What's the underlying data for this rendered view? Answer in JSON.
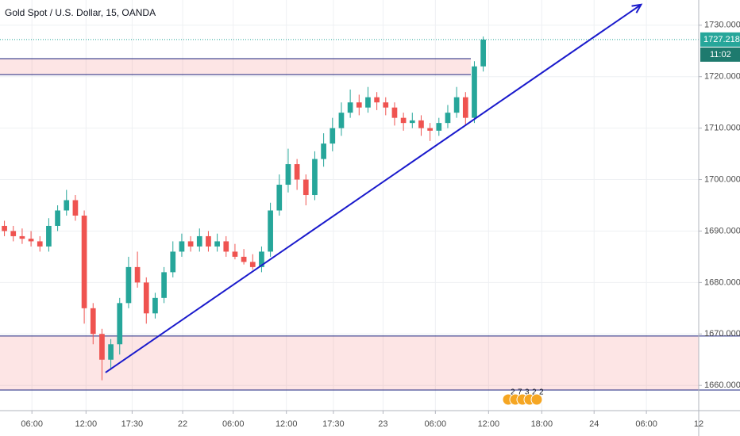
{
  "chart_data": {
    "type": "candlestick",
    "title": "Gold Spot / U.S. Dollar, 15, OANDA",
    "x": [
      0.5,
      1.5,
      2.5,
      3.5,
      4.5,
      5.5,
      6.5,
      7.5,
      8.5,
      9.5,
      10.5,
      11.5,
      12.5,
      13.5,
      14.5,
      15.5,
      16.5,
      17.5,
      18.5,
      19.5,
      20.5,
      21.5,
      22.5,
      23.5,
      24.5,
      25.5,
      26.5,
      27.5,
      28.5,
      29.5,
      30.5,
      31.5,
      32.5,
      33.5,
      34.5,
      35.5,
      36.5,
      37.5,
      38.5,
      39.5,
      40.5,
      41.5,
      42.5,
      43.5,
      44.5,
      45.5,
      46.5,
      47.5,
      48.5,
      49.5,
      50.5,
      51.5,
      52.5,
      53.5,
      54.5
    ],
    "open": [
      1691,
      1690,
      1689,
      1688.5,
      1688,
      1687,
      1691,
      1694,
      1696,
      1693,
      1675,
      1670,
      1665,
      1668,
      1676,
      1683,
      1680,
      1674,
      1677,
      1682,
      1686,
      1688,
      1687,
      1689,
      1687,
      1688,
      1686,
      1685,
      1684,
      1683,
      1686,
      1694,
      1699,
      1703,
      1700,
      1697,
      1704,
      1707,
      1710,
      1713,
      1715,
      1714,
      1716,
      1715,
      1714,
      1712,
      1711,
      1711.5,
      1710,
      1709.5,
      1711,
      1713,
      1716,
      1712,
      1722
    ],
    "high": [
      1692,
      1691,
      1690.5,
      1690,
      1689,
      1692.5,
      1695,
      1698,
      1697,
      1694,
      1676,
      1671,
      1669,
      1677,
      1685,
      1686,
      1681,
      1678,
      1683,
      1688,
      1689.5,
      1689,
      1690.5,
      1690,
      1689.5,
      1689,
      1687.5,
      1686.5,
      1685.5,
      1687,
      1695.5,
      1701,
      1706,
      1704,
      1701,
      1705.5,
      1709,
      1712,
      1715,
      1717.5,
      1716.5,
      1718,
      1717,
      1716,
      1715,
      1713,
      1713,
      1712.5,
      1711,
      1712,
      1714.5,
      1718,
      1717,
      1723,
      1727.8
    ],
    "low": [
      1689,
      1688,
      1687.5,
      1687,
      1686,
      1686,
      1690,
      1693,
      1692,
      1672,
      1668,
      1661,
      1663,
      1666,
      1675,
      1679,
      1672,
      1673,
      1676,
      1681,
      1685,
      1686,
      1686,
      1686,
      1686,
      1685,
      1684.5,
      1683.5,
      1682.5,
      1682,
      1685,
      1693,
      1697.5,
      1698,
      1695,
      1696,
      1702.5,
      1705.5,
      1708.5,
      1712,
      1712.5,
      1713,
      1713.5,
      1712.5,
      1710.5,
      1709.5,
      1710,
      1708.5,
      1707.5,
      1708.5,
      1710,
      1712,
      1710.5,
      1711,
      1721
    ],
    "close": [
      1690,
      1689,
      1688.5,
      1688,
      1687,
      1691,
      1694,
      1696,
      1693,
      1675,
      1670,
      1665,
      1668,
      1676,
      1683,
      1680,
      1674,
      1677,
      1682,
      1686,
      1688,
      1687,
      1689,
      1687,
      1688,
      1686,
      1685,
      1684,
      1683,
      1686,
      1694,
      1699,
      1703,
      1700,
      1697,
      1704,
      1707,
      1710,
      1713,
      1715,
      1714,
      1716,
      1715,
      1714,
      1712,
      1711,
      1711.5,
      1710,
      1709.5,
      1711,
      1713,
      1716,
      1712,
      1722,
      1727.2
    ],
    "up_color": "#26a69a",
    "down_color": "#ef5350",
    "xlim": [
      0,
      78.8
    ],
    "xticks": [
      {
        "value": 3.6,
        "label": "06:00"
      },
      {
        "value": 9.7,
        "label": "12:00"
      },
      {
        "value": 14.9,
        "label": "17:30"
      },
      {
        "value": 20.6,
        "label": "22"
      },
      {
        "value": 26.3,
        "label": "06:00"
      },
      {
        "value": 32.3,
        "label": "12:00"
      },
      {
        "value": 37.6,
        "label": "17:30"
      },
      {
        "value": 43.2,
        "label": "23"
      },
      {
        "value": 49.1,
        "label": "06:00"
      },
      {
        "value": 55.1,
        "label": "12:00"
      },
      {
        "value": 61.1,
        "label": "18:00"
      },
      {
        "value": 67.0,
        "label": "24"
      },
      {
        "value": 72.9,
        "label": "06:00"
      },
      {
        "value": 78.8,
        "label": "12"
      }
    ],
    "ylim": [
      1655.1,
      1734.9
    ],
    "yticks": [
      {
        "value": 1660,
        "label": "1660.000"
      },
      {
        "value": 1670,
        "label": "1670.000"
      },
      {
        "value": 1680,
        "label": "1680.000"
      },
      {
        "value": 1690,
        "label": "1690.000"
      },
      {
        "value": 1700,
        "label": "1700.000"
      },
      {
        "value": 1710,
        "label": "1710.000"
      },
      {
        "value": 1720,
        "label": "1720.000"
      },
      {
        "value": 1730,
        "label": "1730.000"
      }
    ],
    "grid": true,
    "zones": [
      {
        "from": 1720.4,
        "to": 1723.5,
        "x_end": 53.1
      },
      {
        "from": 1659.1,
        "to": 1669.6,
        "x_end": 78.8
      }
    ],
    "trendline": {
      "x": [
        11.9,
        72.3
      ],
      "y": [
        1662.5,
        1734.0
      ],
      "color": "#1a1acc"
    },
    "last_price": 1727.218,
    "countdown": "11:02",
    "event_labels": [
      "2",
      "7",
      "3",
      "2",
      "2"
    ]
  }
}
